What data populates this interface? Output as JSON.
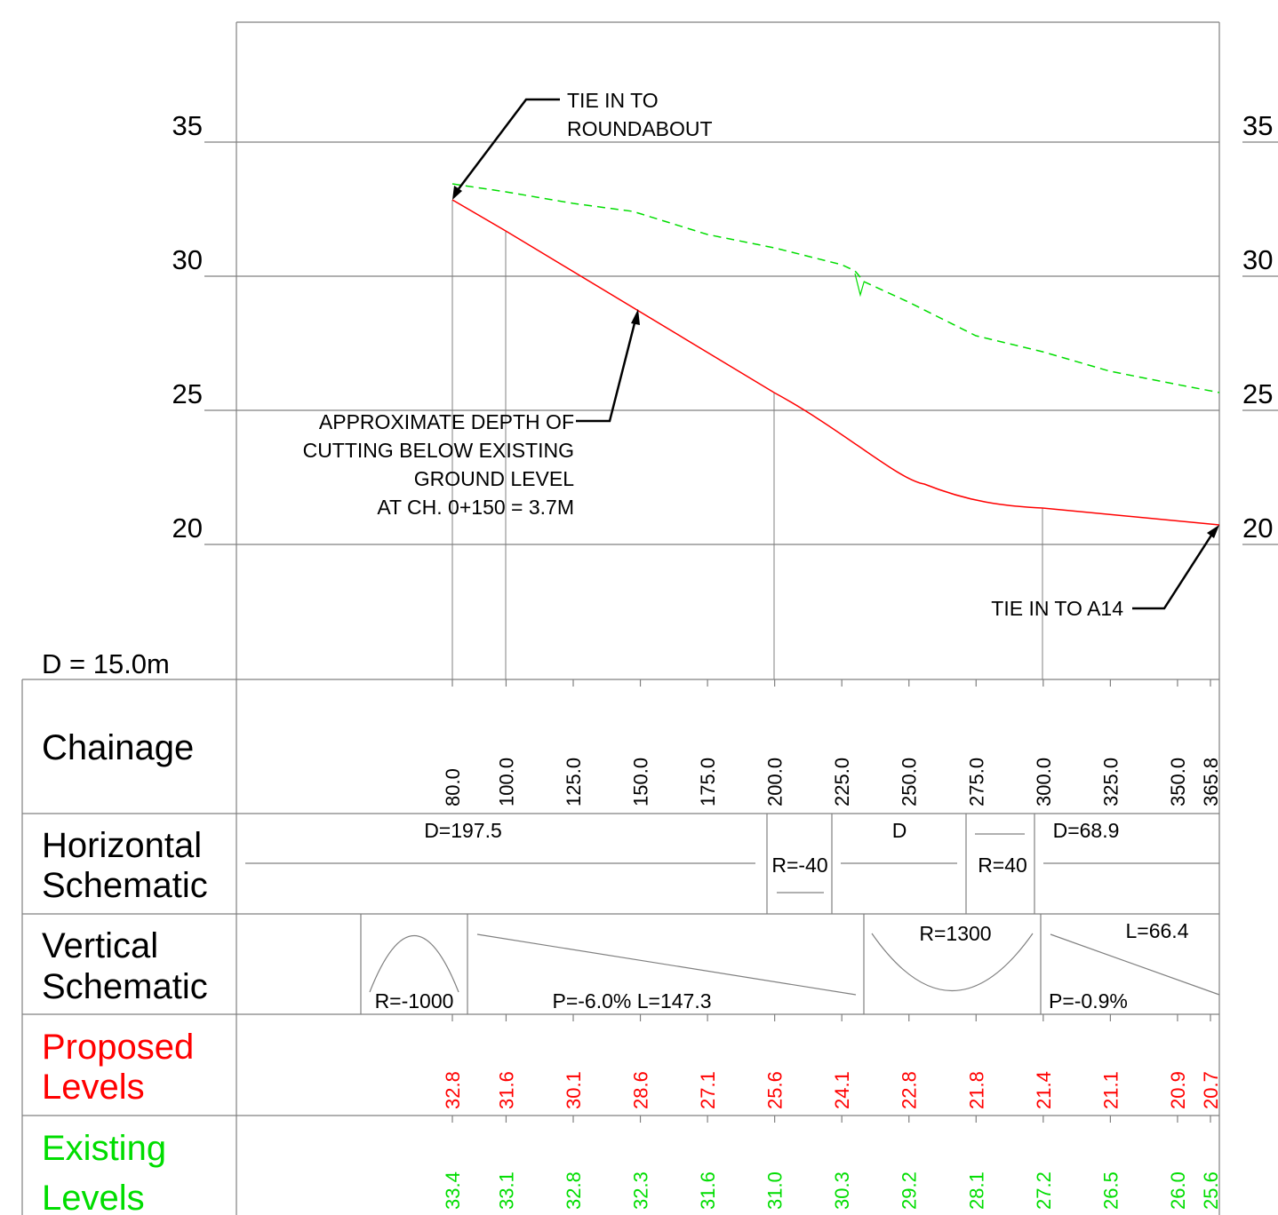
{
  "y_axis": {
    "left_labels": [
      "35",
      "30",
      "25",
      "20"
    ],
    "right_labels": [
      "35",
      "30",
      "25",
      "20"
    ],
    "levels": [
      35,
      30,
      25,
      20
    ],
    "datum": "D = 15.0m"
  },
  "annotations": {
    "tie_roundabout": [
      "TIE IN TO",
      "ROUNDABOUT"
    ],
    "cutting": [
      "APPROXIMATE DEPTH OF",
      "CUTTING BELOW EXISTING",
      "GROUND LEVEL",
      "AT CH. 0+150 = 3.7M"
    ],
    "tie_a14": "TIE IN TO A14"
  },
  "rows": {
    "chainage": "Chainage",
    "horizontal": [
      "Horizontal",
      "Schematic"
    ],
    "vertical": [
      "Vertical",
      "Schematic"
    ],
    "proposed": [
      "Proposed",
      "Levels"
    ],
    "existing": [
      "Existing",
      "Levels"
    ]
  },
  "chainage_labels": [
    "80.0",
    "100.0",
    "125.0",
    "150.0",
    "175.0",
    "200.0",
    "225.0",
    "250.0",
    "275.0",
    "300.0",
    "325.0",
    "350.0",
    "365.8"
  ],
  "chainage_values": [
    80,
    100,
    125,
    150,
    175,
    200,
    225,
    250,
    275,
    300,
    325,
    350,
    365.8
  ],
  "proposed_labels": [
    "32.8",
    "31.6",
    "30.1",
    "28.6",
    "27.1",
    "25.6",
    "24.1",
    "22.8",
    "21.8",
    "21.4",
    "21.1",
    "20.9",
    "20.7"
  ],
  "existing_labels": [
    "33.4",
    "33.1",
    "32.8",
    "32.3",
    "31.6",
    "31.0",
    "30.3",
    "29.2",
    "28.1",
    "27.2",
    "26.5",
    "26.0",
    "25.6"
  ],
  "horizontal_schematic": {
    "d1": "D=197.5",
    "r1": "R=-40",
    "d2": "D",
    "r2": "R=40",
    "d3": "D=68.9"
  },
  "vertical_schematic": {
    "r1": "R=-1000",
    "grade1": "P=-6.0% L=147.3",
    "r2": "R=1300",
    "grade2": "P=-0.9%",
    "length2": "L=66.4"
  },
  "colors": {
    "proposed": "#ff0000",
    "existing": "#00dd00",
    "grid": "#808080",
    "text": "#000000"
  }
}
